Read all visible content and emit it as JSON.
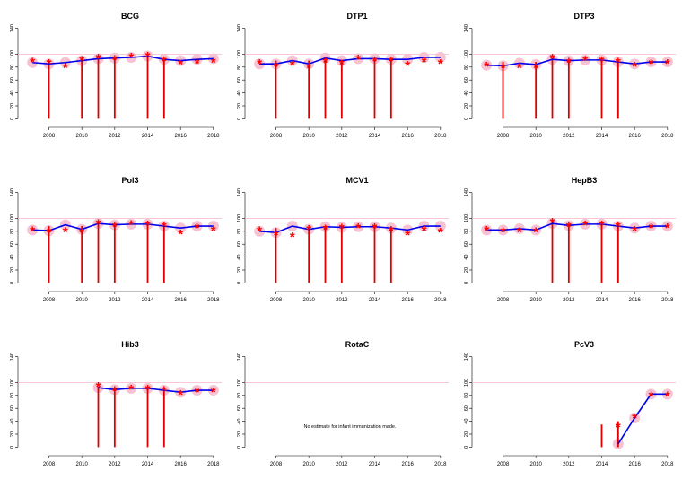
{
  "chart_data": [
    {
      "type": "line",
      "title": "BCG",
      "xlabel": "",
      "ylabel": "",
      "xticks": [
        2008,
        2010,
        2012,
        2014,
        2016,
        2018
      ],
      "yticks": [
        0,
        20,
        40,
        60,
        80,
        100,
        140
      ],
      "xlim": [
        2007,
        2018
      ],
      "ylim": [
        0,
        140
      ],
      "reference_line": 100,
      "estimate": [
        {
          "x": 2007,
          "y": 87
        },
        {
          "x": 2008,
          "y": 85
        },
        {
          "x": 2009,
          "y": 87
        },
        {
          "x": 2010,
          "y": 90
        },
        {
          "x": 2011,
          "y": 93
        },
        {
          "x": 2012,
          "y": 94
        },
        {
          "x": 2013,
          "y": 95
        },
        {
          "x": 2014,
          "y": 97
        },
        {
          "x": 2015,
          "y": 92
        },
        {
          "x": 2016,
          "y": 90
        },
        {
          "x": 2017,
          "y": 92
        },
        {
          "x": 2018,
          "y": 93
        }
      ],
      "markers": [
        {
          "x": 2007,
          "y": 88
        },
        {
          "x": 2008,
          "y": 86
        },
        {
          "x": 2009,
          "y": 80
        },
        {
          "x": 2010,
          "y": 91
        },
        {
          "x": 2011,
          "y": 94
        },
        {
          "x": 2012,
          "y": 92
        },
        {
          "x": 2013,
          "y": 96
        },
        {
          "x": 2014,
          "y": 97
        },
        {
          "x": 2015,
          "y": 90
        },
        {
          "x": 2016,
          "y": 85
        },
        {
          "x": 2017,
          "y": 87
        },
        {
          "x": 2018,
          "y": 88
        }
      ],
      "bars": [
        {
          "x": 2008,
          "top": 90
        },
        {
          "x": 2010,
          "top": 92
        },
        {
          "x": 2011,
          "top": 94
        },
        {
          "x": 2012,
          "top": 93
        },
        {
          "x": 2014,
          "top": 97
        },
        {
          "x": 2015,
          "top": 92
        }
      ]
    },
    {
      "type": "line",
      "title": "DTP1",
      "xlabel": "",
      "ylabel": "",
      "xticks": [
        2008,
        2010,
        2012,
        2014,
        2016,
        2018
      ],
      "yticks": [
        0,
        20,
        40,
        60,
        80,
        100,
        140
      ],
      "xlim": [
        2007,
        2018
      ],
      "ylim": [
        0,
        140
      ],
      "reference_line": 100,
      "estimate": [
        {
          "x": 2007,
          "y": 85
        },
        {
          "x": 2008,
          "y": 85
        },
        {
          "x": 2009,
          "y": 90
        },
        {
          "x": 2010,
          "y": 85
        },
        {
          "x": 2011,
          "y": 94
        },
        {
          "x": 2012,
          "y": 90
        },
        {
          "x": 2013,
          "y": 93
        },
        {
          "x": 2014,
          "y": 93
        },
        {
          "x": 2015,
          "y": 92
        },
        {
          "x": 2016,
          "y": 92
        },
        {
          "x": 2017,
          "y": 95
        },
        {
          "x": 2018,
          "y": 95
        }
      ],
      "markers": [
        {
          "x": 2007,
          "y": 86
        },
        {
          "x": 2008,
          "y": 82
        },
        {
          "x": 2009,
          "y": 84
        },
        {
          "x": 2010,
          "y": 80
        },
        {
          "x": 2011,
          "y": 88
        },
        {
          "x": 2012,
          "y": 85
        },
        {
          "x": 2013,
          "y": 93
        },
        {
          "x": 2014,
          "y": 90
        },
        {
          "x": 2015,
          "y": 90
        },
        {
          "x": 2016,
          "y": 83
        },
        {
          "x": 2017,
          "y": 89
        },
        {
          "x": 2018,
          "y": 86
        }
      ],
      "bars": [
        {
          "x": 2008,
          "top": 90
        },
        {
          "x": 2010,
          "top": 90
        },
        {
          "x": 2011,
          "top": 94
        },
        {
          "x": 2012,
          "top": 90
        },
        {
          "x": 2014,
          "top": 93
        },
        {
          "x": 2015,
          "top": 92
        }
      ]
    },
    {
      "type": "line",
      "title": "DTP3",
      "xlabel": "",
      "ylabel": "",
      "xticks": [
        2008,
        2010,
        2012,
        2014,
        2016,
        2018
      ],
      "yticks": [
        0,
        20,
        40,
        60,
        80,
        100,
        140
      ],
      "xlim": [
        2007,
        2018
      ],
      "ylim": [
        0,
        140
      ],
      "reference_line": 100,
      "estimate": [
        {
          "x": 2007,
          "y": 83
        },
        {
          "x": 2008,
          "y": 82
        },
        {
          "x": 2009,
          "y": 86
        },
        {
          "x": 2010,
          "y": 84
        },
        {
          "x": 2011,
          "y": 92
        },
        {
          "x": 2012,
          "y": 90
        },
        {
          "x": 2013,
          "y": 91
        },
        {
          "x": 2014,
          "y": 91
        },
        {
          "x": 2015,
          "y": 88
        },
        {
          "x": 2016,
          "y": 85
        },
        {
          "x": 2017,
          "y": 88
        },
        {
          "x": 2018,
          "y": 88
        }
      ],
      "markers": [
        {
          "x": 2007,
          "y": 82
        },
        {
          "x": 2008,
          "y": 80
        },
        {
          "x": 2009,
          "y": 80
        },
        {
          "x": 2010,
          "y": 80
        },
        {
          "x": 2011,
          "y": 94
        },
        {
          "x": 2012,
          "y": 88
        },
        {
          "x": 2013,
          "y": 91
        },
        {
          "x": 2014,
          "y": 90
        },
        {
          "x": 2015,
          "y": 88
        },
        {
          "x": 2016,
          "y": 82
        },
        {
          "x": 2017,
          "y": 86
        },
        {
          "x": 2018,
          "y": 86
        }
      ],
      "bars": [
        {
          "x": 2008,
          "top": 88
        },
        {
          "x": 2010,
          "top": 88
        },
        {
          "x": 2011,
          "top": 94
        },
        {
          "x": 2012,
          "top": 90
        },
        {
          "x": 2014,
          "top": 91
        },
        {
          "x": 2015,
          "top": 88
        }
      ]
    },
    {
      "type": "line",
      "title": "Pol3",
      "xlabel": "",
      "ylabel": "",
      "xticks": [
        2008,
        2010,
        2012,
        2014,
        2016,
        2018
      ],
      "yticks": [
        0,
        20,
        40,
        60,
        80,
        100,
        140
      ],
      "xlim": [
        2007,
        2018
      ],
      "ylim": [
        0,
        140
      ],
      "reference_line": 100,
      "estimate": [
        {
          "x": 2007,
          "y": 82
        },
        {
          "x": 2008,
          "y": 81
        },
        {
          "x": 2009,
          "y": 90
        },
        {
          "x": 2010,
          "y": 83
        },
        {
          "x": 2011,
          "y": 92
        },
        {
          "x": 2012,
          "y": 90
        },
        {
          "x": 2013,
          "y": 91
        },
        {
          "x": 2014,
          "y": 91
        },
        {
          "x": 2015,
          "y": 88
        },
        {
          "x": 2016,
          "y": 85
        },
        {
          "x": 2017,
          "y": 88
        },
        {
          "x": 2018,
          "y": 88
        }
      ],
      "markers": [
        {
          "x": 2007,
          "y": 81
        },
        {
          "x": 2008,
          "y": 79
        },
        {
          "x": 2009,
          "y": 80
        },
        {
          "x": 2010,
          "y": 79
        },
        {
          "x": 2011,
          "y": 92
        },
        {
          "x": 2012,
          "y": 88
        },
        {
          "x": 2013,
          "y": 91
        },
        {
          "x": 2014,
          "y": 90
        },
        {
          "x": 2015,
          "y": 88
        },
        {
          "x": 2016,
          "y": 76
        },
        {
          "x": 2017,
          "y": 86
        },
        {
          "x": 2018,
          "y": 82
        }
      ],
      "bars": [
        {
          "x": 2008,
          "top": 88
        },
        {
          "x": 2010,
          "top": 88
        },
        {
          "x": 2011,
          "top": 92
        },
        {
          "x": 2012,
          "top": 90
        },
        {
          "x": 2014,
          "top": 91
        },
        {
          "x": 2015,
          "top": 88
        }
      ]
    },
    {
      "type": "line",
      "title": "MCV1",
      "xlabel": "",
      "ylabel": "",
      "xticks": [
        2008,
        2010,
        2012,
        2014,
        2016,
        2018
      ],
      "yticks": [
        0,
        20,
        40,
        60,
        80,
        100,
        140
      ],
      "xlim": [
        2007,
        2018
      ],
      "ylim": [
        0,
        140
      ],
      "reference_line": 100,
      "estimate": [
        {
          "x": 2007,
          "y": 80
        },
        {
          "x": 2008,
          "y": 78
        },
        {
          "x": 2009,
          "y": 88
        },
        {
          "x": 2010,
          "y": 83
        },
        {
          "x": 2011,
          "y": 87
        },
        {
          "x": 2012,
          "y": 86
        },
        {
          "x": 2013,
          "y": 87
        },
        {
          "x": 2014,
          "y": 87
        },
        {
          "x": 2015,
          "y": 85
        },
        {
          "x": 2016,
          "y": 82
        },
        {
          "x": 2017,
          "y": 88
        },
        {
          "x": 2018,
          "y": 88
        }
      ],
      "markers": [
        {
          "x": 2007,
          "y": 81
        },
        {
          "x": 2008,
          "y": 75
        },
        {
          "x": 2009,
          "y": 72
        },
        {
          "x": 2010,
          "y": 83
        },
        {
          "x": 2011,
          "y": 84
        },
        {
          "x": 2012,
          "y": 85
        },
        {
          "x": 2013,
          "y": 86
        },
        {
          "x": 2014,
          "y": 86
        },
        {
          "x": 2015,
          "y": 82
        },
        {
          "x": 2016,
          "y": 75
        },
        {
          "x": 2017,
          "y": 82
        },
        {
          "x": 2018,
          "y": 79
        }
      ],
      "bars": [
        {
          "x": 2008,
          "top": 85
        },
        {
          "x": 2010,
          "top": 87
        },
        {
          "x": 2011,
          "top": 87
        },
        {
          "x": 2012,
          "top": 86
        },
        {
          "x": 2014,
          "top": 87
        },
        {
          "x": 2015,
          "top": 85
        }
      ]
    },
    {
      "type": "line",
      "title": "HepB3",
      "xlabel": "",
      "ylabel": "",
      "xticks": [
        2008,
        2010,
        2012,
        2014,
        2016,
        2018
      ],
      "yticks": [
        0,
        20,
        40,
        60,
        80,
        100,
        140
      ],
      "xlim": [
        2007,
        2018
      ],
      "ylim": [
        0,
        140
      ],
      "reference_line": 100,
      "estimate": [
        {
          "x": 2007,
          "y": 82
        },
        {
          "x": 2008,
          "y": 82
        },
        {
          "x": 2009,
          "y": 84
        },
        {
          "x": 2010,
          "y": 82
        },
        {
          "x": 2011,
          "y": 92
        },
        {
          "x": 2012,
          "y": 89
        },
        {
          "x": 2013,
          "y": 91
        },
        {
          "x": 2014,
          "y": 91
        },
        {
          "x": 2015,
          "y": 88
        },
        {
          "x": 2016,
          "y": 85
        },
        {
          "x": 2017,
          "y": 88
        },
        {
          "x": 2018,
          "y": 88
        }
      ],
      "markers": [
        {
          "x": 2007,
          "y": 82
        },
        {
          "x": 2008,
          "y": 80
        },
        {
          "x": 2009,
          "y": 80
        },
        {
          "x": 2010,
          "y": 80
        },
        {
          "x": 2011,
          "y": 94
        },
        {
          "x": 2012,
          "y": 88
        },
        {
          "x": 2013,
          "y": 90
        },
        {
          "x": 2014,
          "y": 90
        },
        {
          "x": 2015,
          "y": 88
        },
        {
          "x": 2016,
          "y": 82
        },
        {
          "x": 2017,
          "y": 86
        },
        {
          "x": 2018,
          "y": 86
        }
      ],
      "bars": [
        {
          "x": 2011,
          "top": 94
        },
        {
          "x": 2012,
          "top": 90
        },
        {
          "x": 2014,
          "top": 91
        },
        {
          "x": 2015,
          "top": 88
        }
      ]
    },
    {
      "type": "line",
      "title": "Hib3",
      "xlabel": "",
      "ylabel": "",
      "xticks": [
        2008,
        2010,
        2012,
        2014,
        2016,
        2018
      ],
      "yticks": [
        0,
        20,
        40,
        60,
        80,
        100,
        140
      ],
      "xlim": [
        2007,
        2018
      ],
      "ylim": [
        0,
        140
      ],
      "reference_line": 100,
      "estimate": [
        {
          "x": 2011,
          "y": 92
        },
        {
          "x": 2012,
          "y": 89
        },
        {
          "x": 2013,
          "y": 91
        },
        {
          "x": 2014,
          "y": 91
        },
        {
          "x": 2015,
          "y": 88
        },
        {
          "x": 2016,
          "y": 85
        },
        {
          "x": 2017,
          "y": 88
        },
        {
          "x": 2018,
          "y": 88
        }
      ],
      "markers": [
        {
          "x": 2011,
          "y": 94
        },
        {
          "x": 2012,
          "y": 88
        },
        {
          "x": 2013,
          "y": 90
        },
        {
          "x": 2014,
          "y": 90
        },
        {
          "x": 2015,
          "y": 88
        },
        {
          "x": 2016,
          "y": 82
        },
        {
          "x": 2017,
          "y": 86
        },
        {
          "x": 2018,
          "y": 86
        }
      ],
      "bars": [
        {
          "x": 2011,
          "top": 94
        },
        {
          "x": 2012,
          "top": 90
        },
        {
          "x": 2014,
          "top": 91
        },
        {
          "x": 2015,
          "top": 88
        }
      ]
    },
    {
      "type": "line",
      "title": "RotaC",
      "xlabel": "",
      "ylabel": "",
      "xticks": [
        2008,
        2010,
        2012,
        2014,
        2016,
        2018
      ],
      "yticks": [
        0,
        20,
        40,
        60,
        80,
        100,
        140
      ],
      "xlim": [
        2007,
        2018
      ],
      "ylim": [
        0,
        140
      ],
      "reference_line": 100,
      "note": "No estimate for infant immunization made.",
      "estimate": [],
      "markers": [],
      "bars": []
    },
    {
      "type": "line",
      "title": "PcV3",
      "xlabel": "",
      "ylabel": "",
      "xticks": [
        2008,
        2010,
        2012,
        2014,
        2016,
        2018
      ],
      "yticks": [
        0,
        20,
        40,
        60,
        80,
        100,
        140
      ],
      "xlim": [
        2007,
        2018
      ],
      "ylim": [
        0,
        140
      ],
      "reference_line": 100,
      "estimate": [
        {
          "x": 2015,
          "y": 5
        },
        {
          "x": 2016,
          "y": 45
        },
        {
          "x": 2017,
          "y": 82
        },
        {
          "x": 2018,
          "y": 82
        }
      ],
      "markers": [
        {
          "x": 2015,
          "y": 32
        },
        {
          "x": 2016,
          "y": 46
        },
        {
          "x": 2017,
          "y": 80
        },
        {
          "x": 2018,
          "y": 80
        }
      ],
      "bars": [
        {
          "x": 2014,
          "top": 35
        },
        {
          "x": 2015,
          "top": 40
        }
      ]
    }
  ]
}
